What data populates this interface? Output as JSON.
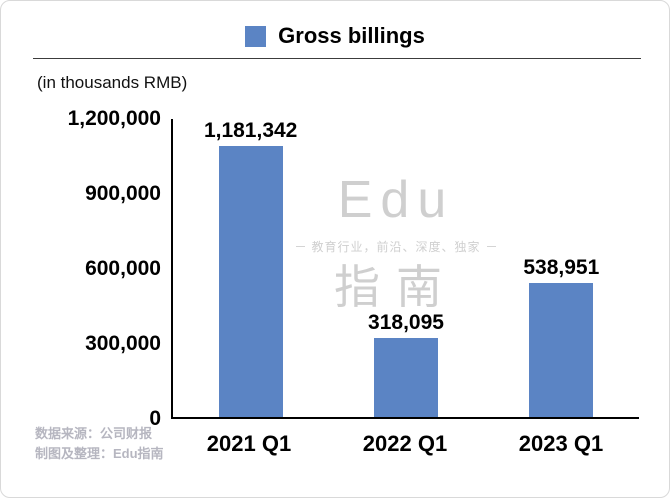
{
  "colors": {
    "bar": "#5b84c4",
    "axis": "#000000",
    "watermark": "#cfcfcf",
    "source_text": "#b6b6c0"
  },
  "legend": {
    "label": "Gross billings"
  },
  "units_note": "(in thousands RMB)",
  "watermark": {
    "line1": "Edu",
    "line2": "教育行业，前沿、深度、独家",
    "line3": "指南"
  },
  "source": {
    "line1": "数据来源：公司财报",
    "line2": "制图及整理：Edu指南"
  },
  "chart_data": {
    "type": "bar",
    "title": "Gross billings",
    "categories": [
      "2021 Q1",
      "2022 Q1",
      "2023 Q1"
    ],
    "values": [
      1181342,
      318095,
      538951
    ],
    "value_labels": [
      "1,181,342",
      "318,095",
      "538,951"
    ],
    "ylabel": "(in thousands RMB)",
    "ylim": [
      0,
      1200000
    ],
    "yticks": [
      "1,200,000",
      "900,000",
      "600,000",
      "300,000",
      "0"
    ],
    "legend_position": "top",
    "grid": false
  }
}
